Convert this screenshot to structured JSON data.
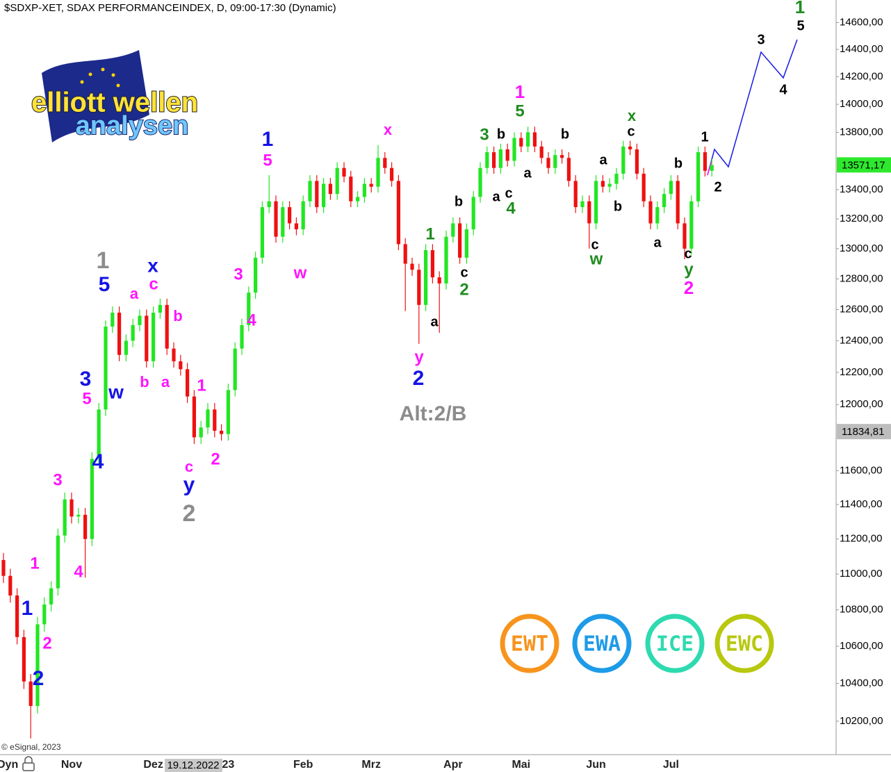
{
  "chart_data": {
    "type": "candlestick",
    "title": "$SDXP-XET, SDAX PERFORMANCEINDEX, D, 09:00-17:30 (Dynamic)",
    "copyright": "© eSignal, 2023",
    "mode_label": "Dyn",
    "crosshair_label": "19.12.2022",
    "log_scale": true,
    "up_color": "#22e622",
    "down_color": "#ee1111",
    "ylim": [
      10030,
      14770
    ],
    "yticks": [
      {
        "value": 10200,
        "label": "10200,00"
      },
      {
        "value": 10400,
        "label": "10400,00"
      },
      {
        "value": 10600,
        "label": "10600,00"
      },
      {
        "value": 10800,
        "label": "10800,00"
      },
      {
        "value": 11000,
        "label": "11000,00"
      },
      {
        "value": 11200,
        "label": "11200,00"
      },
      {
        "value": 11400,
        "label": "11400,00"
      },
      {
        "value": 11600,
        "label": "11600,00"
      },
      {
        "value": 12000,
        "label": "12000,00"
      },
      {
        "value": 12200,
        "label": "12200,00"
      },
      {
        "value": 12400,
        "label": "12400,00"
      },
      {
        "value": 12600,
        "label": "12600,00"
      },
      {
        "value": 12800,
        "label": "12800,00"
      },
      {
        "value": 13000,
        "label": "13000,00"
      },
      {
        "value": 13200,
        "label": "13200,00"
      },
      {
        "value": 13400,
        "label": "13400,00"
      },
      {
        "value": 13800,
        "label": "13800,00"
      },
      {
        "value": 14000,
        "label": "14000,00"
      },
      {
        "value": 14200,
        "label": "14200,00"
      },
      {
        "value": 14400,
        "label": "14400,00"
      },
      {
        "value": 14600,
        "label": "14600,00"
      }
    ],
    "price_tags": [
      {
        "value": 13571.17,
        "label": "13571,17",
        "color": "#2ee82e"
      },
      {
        "value": 11834.81,
        "label": "11834,81",
        "color": "#bdbdbd"
      }
    ],
    "categories": [
      null,
      null,
      null,
      null,
      null,
      null,
      null,
      null,
      null,
      null,
      "Nov",
      null,
      null,
      null,
      null,
      null,
      null,
      null,
      null,
      null,
      null,
      null,
      "Dez",
      null,
      null,
      null,
      null,
      null,
      null,
      null,
      null,
      null,
      null,
      "23",
      null,
      null,
      null,
      null,
      null,
      null,
      null,
      null,
      null,
      null,
      "Feb",
      null,
      null,
      null,
      null,
      null,
      null,
      null,
      null,
      null,
      "Mrz",
      null,
      null,
      null,
      null,
      null,
      null,
      null,
      null,
      null,
      null,
      null,
      "Apr",
      null,
      null,
      null,
      null,
      null,
      null,
      null,
      null,
      null,
      "Mai",
      null,
      null,
      null,
      null,
      null,
      null,
      null,
      null,
      null,
      null,
      "Jun",
      null,
      null,
      null,
      null,
      null,
      null,
      null,
      null,
      null,
      null,
      "Jul",
      null,
      null,
      null,
      null,
      null,
      null
    ],
    "open": [
      11080,
      10990,
      10880,
      10650,
      10410,
      10280,
      10720,
      10830,
      10920,
      11220,
      11430,
      11330,
      11340,
      11200,
      11670,
      11970,
      12490,
      12580,
      12310,
      12400,
      12500,
      12560,
      12270,
      12580,
      12630,
      12350,
      12270,
      12220,
      12050,
      11800,
      11860,
      11970,
      11840,
      11820,
      12090,
      12350,
      12500,
      12710,
      12940,
      13280,
      13320,
      13080,
      13280,
      13170,
      13130,
      13320,
      13460,
      13280,
      13440,
      13370,
      13550,
      13490,
      13320,
      13350,
      13440,
      13420,
      13620,
      13550,
      13460,
      13030,
      12900,
      12860,
      12630,
      12990,
      12810,
      12770,
      13080,
      13170,
      12940,
      13130,
      13350,
      13550,
      13660,
      13550,
      13680,
      13600,
      13760,
      13700,
      13800,
      13700,
      13620,
      13550,
      13640,
      13620,
      13460,
      13280,
      13320,
      13170,
      13460,
      13420,
      13440,
      13510,
      13700,
      13680,
      13510,
      13320,
      13170,
      13280,
      13370,
      13460,
      13170,
      13000,
      13320,
      13660,
      13530
    ],
    "high": [
      11120,
      11030,
      10920,
      10690,
      10450,
      10760,
      10870,
      10960,
      11260,
      11470,
      11470,
      11380,
      11380,
      11710,
      12010,
      12530,
      12620,
      12620,
      12440,
      12540,
      12600,
      12600,
      12620,
      12670,
      12670,
      12390,
      12310,
      12260,
      12090,
      11900,
      12010,
      12010,
      11880,
      12130,
      12390,
      12540,
      12750,
      12980,
      13320,
      13500,
      13360,
      13320,
      13320,
      13210,
      13360,
      13500,
      13500,
      13480,
      13480,
      13590,
      13590,
      13530,
      13390,
      13480,
      13480,
      13710,
      13660,
      13590,
      13500,
      13070,
      12940,
      12900,
      13030,
      13030,
      12850,
      13120,
      13210,
      13210,
      13170,
      13390,
      13590,
      13700,
      13700,
      13720,
      13720,
      13800,
      13800,
      13840,
      13840,
      13740,
      13660,
      13680,
      13680,
      13660,
      13500,
      13360,
      13360,
      13500,
      13500,
      13480,
      13550,
      13740,
      13740,
      13720,
      13550,
      13360,
      13320,
      13410,
      13500,
      13500,
      13210,
      13360,
      13700,
      13700,
      13610
    ],
    "low": [
      10950,
      10840,
      10610,
      10370,
      10110,
      10240,
      10680,
      10790,
      10880,
      11180,
      11290,
      11290,
      10980,
      11160,
      11630,
      11930,
      12450,
      12270,
      12270,
      12360,
      12460,
      12230,
      12230,
      12540,
      12310,
      12230,
      12180,
      12010,
      11760,
      11760,
      11820,
      11800,
      11780,
      11780,
      12050,
      12310,
      12460,
      12670,
      12900,
      13240,
      13040,
      13040,
      13130,
      13090,
      13090,
      13280,
      13240,
      13240,
      13330,
      13330,
      13450,
      13280,
      13280,
      13310,
      13380,
      13380,
      13510,
      13420,
      12990,
      12590,
      12820,
      12380,
      12590,
      12770,
      12450,
      12730,
      13040,
      12900,
      12900,
      13090,
      13310,
      13510,
      13510,
      13510,
      13560,
      13560,
      13660,
      13660,
      13660,
      13580,
      13510,
      13510,
      13580,
      13420,
      13240,
      13240,
      13000,
      13130,
      13380,
      13380,
      13400,
      13470,
      13640,
      13470,
      13280,
      13130,
      13130,
      13240,
      13330,
      13130,
      12930,
      12960,
      13280,
      13490,
      13490
    ],
    "close": [
      10990,
      10880,
      10650,
      10410,
      10280,
      10720,
      10830,
      10920,
      11220,
      11430,
      11330,
      11340,
      11200,
      11670,
      11970,
      12490,
      12580,
      12310,
      12400,
      12500,
      12560,
      12270,
      12580,
      12630,
      12350,
      12270,
      12220,
      12050,
      11800,
      11860,
      11970,
      11840,
      11820,
      12090,
      12350,
      12500,
      12710,
      12940,
      13280,
      13320,
      13080,
      13280,
      13170,
      13130,
      13320,
      13460,
      13280,
      13440,
      13370,
      13550,
      13490,
      13320,
      13350,
      13440,
      13420,
      13620,
      13550,
      13460,
      13030,
      12900,
      12860,
      12630,
      12990,
      12810,
      12770,
      13080,
      13170,
      12940,
      13130,
      13350,
      13550,
      13660,
      13550,
      13680,
      13600,
      13760,
      13700,
      13800,
      13700,
      13620,
      13550,
      13640,
      13620,
      13460,
      13280,
      13320,
      13170,
      13460,
      13420,
      13440,
      13510,
      13700,
      13680,
      13510,
      13320,
      13170,
      13280,
      13370,
      13460,
      13170,
      13000,
      13320,
      13660,
      13530,
      13570
    ],
    "annotations": [
      {
        "text": "1",
        "color": "#1414e6"
      },
      {
        "text": "2",
        "color": "#ff14ff"
      },
      {
        "text": "2",
        "color": "#1414e6"
      },
      {
        "text": "1",
        "color": "#ff14ff"
      },
      {
        "text": "3",
        "color": "#ff14ff"
      },
      {
        "text": "4",
        "color": "#ff14ff"
      },
      {
        "text": "3",
        "color": "#1414e6"
      },
      {
        "text": "5",
        "color": "#ff14ff"
      },
      {
        "text": "4",
        "color": "#1414e6"
      },
      {
        "text": "1",
        "color": "#8c8c8c"
      },
      {
        "text": "5",
        "color": "#1414e6"
      },
      {
        "text": "w",
        "color": "#1414e6"
      },
      {
        "text": "a",
        "color": "#ff14ff"
      },
      {
        "text": "x",
        "color": "#1414e6"
      },
      {
        "text": "c",
        "color": "#ff14ff"
      },
      {
        "text": "b",
        "color": "#ff14ff"
      },
      {
        "text": "a",
        "color": "#ff14ff"
      },
      {
        "text": "b",
        "color": "#ff14ff"
      },
      {
        "text": "1",
        "color": "#ff14ff"
      },
      {
        "text": "c",
        "color": "#ff14ff"
      },
      {
        "text": "y",
        "color": "#1414e6"
      },
      {
        "text": "2",
        "color": "#ff14ff"
      },
      {
        "text": "2",
        "color": "#8c8c8c"
      },
      {
        "text": "3",
        "color": "#ff14ff"
      },
      {
        "text": "4",
        "color": "#ff14ff"
      },
      {
        "text": "1",
        "color": "#1414e6"
      },
      {
        "text": "5",
        "color": "#ff14ff"
      },
      {
        "text": "w",
        "color": "#ff14ff"
      },
      {
        "text": "x",
        "color": "#ff14ff"
      },
      {
        "text": "y",
        "color": "#ff14ff"
      },
      {
        "text": "2",
        "color": "#1414e6"
      },
      {
        "text": "Alt:2/B",
        "color": "#8c8c8c"
      },
      {
        "text": "a",
        "color": "#000000"
      },
      {
        "text": "1",
        "color": "#1e8c1e"
      },
      {
        "text": "c",
        "color": "#000000"
      },
      {
        "text": "2",
        "color": "#1e8c1e"
      },
      {
        "text": "b",
        "color": "#000000"
      },
      {
        "text": "3",
        "color": "#1e8c1e"
      },
      {
        "text": "b",
        "color": "#000000"
      },
      {
        "text": "a",
        "color": "#000000"
      },
      {
        "text": "c",
        "color": "#000000"
      },
      {
        "text": "4",
        "color": "#1e8c1e"
      },
      {
        "text": "1",
        "color": "#ff14ff"
      },
      {
        "text": "5",
        "color": "#1e8c1e"
      },
      {
        "text": "a",
        "color": "#000000"
      },
      {
        "text": "b",
        "color": "#000000"
      },
      {
        "text": "a",
        "color": "#000000"
      },
      {
        "text": "b",
        "color": "#000000"
      },
      {
        "text": "c",
        "color": "#000000"
      },
      {
        "text": "w",
        "color": "#1e8c1e"
      },
      {
        "text": "x",
        "color": "#1e8c1e"
      },
      {
        "text": "c",
        "color": "#000000"
      },
      {
        "text": "b",
        "color": "#000000"
      },
      {
        "text": "a",
        "color": "#000000"
      },
      {
        "text": "c",
        "color": "#000000"
      },
      {
        "text": "y",
        "color": "#1e8c1e"
      },
      {
        "text": "2",
        "color": "#ff14ff"
      },
      {
        "text": "1",
        "color": "#000000"
      },
      {
        "text": "2",
        "color": "#000000"
      },
      {
        "text": "3",
        "color": "#000000"
      },
      {
        "text": "4",
        "color": "#000000"
      },
      {
        "text": "1",
        "color": "#1e8c1e"
      },
      {
        "text": "5",
        "color": "#000000"
      }
    ]
  },
  "logo": {
    "line1": "elliott wellen",
    "line2": "analysen"
  },
  "badges": [
    {
      "text": "EWT",
      "color": "#f7941d"
    },
    {
      "text": "EWA",
      "color": "#1e9be8"
    },
    {
      "text": "ICE",
      "color": "#2edab0"
    },
    {
      "text": "EWC",
      "color": "#b8c80e"
    }
  ]
}
